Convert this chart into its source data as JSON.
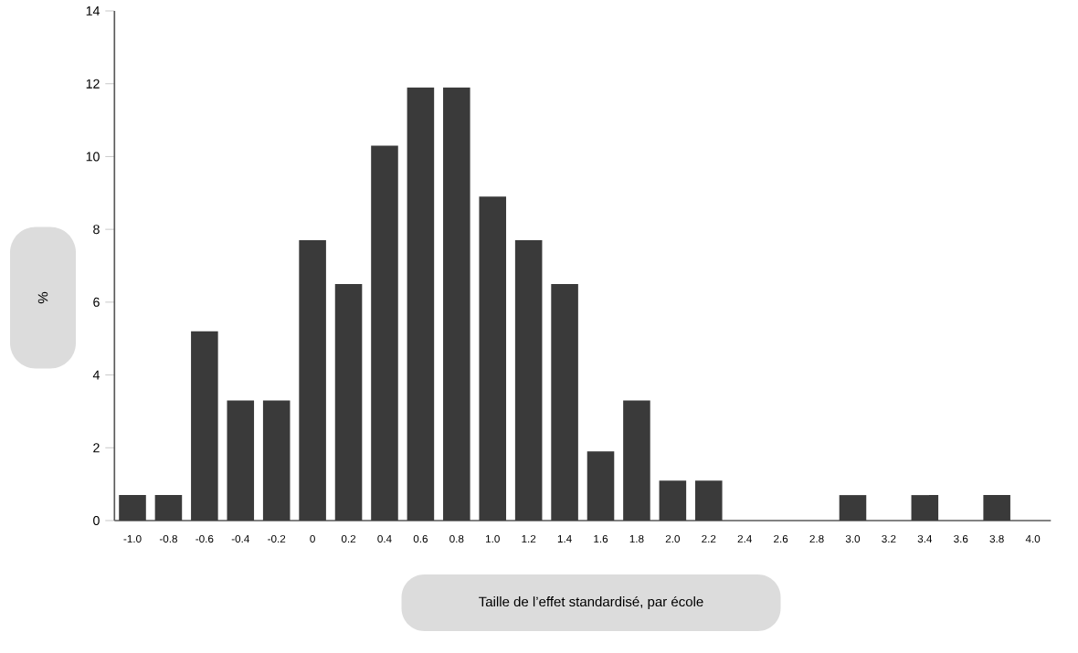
{
  "chart_data": {
    "type": "bar",
    "xlabel": "Taille de l’effet standardisé, par école",
    "ylabel": "%",
    "categories": [
      "-1.0",
      "-0.8",
      "-0.6",
      "-0.4",
      "-0.2",
      "0",
      "0.2",
      "0.4",
      "0.6",
      "0.8",
      "1.0",
      "1.2",
      "1.4",
      "1.6",
      "1.8",
      "2.0",
      "2.2",
      "2.4",
      "2.6",
      "2.8",
      "3.0",
      "3.2",
      "3.4",
      "3.6",
      "3.8",
      "4.0"
    ],
    "values": [
      0.7,
      0.7,
      5.2,
      3.3,
      3.3,
      7.7,
      6.5,
      10.3,
      11.9,
      11.9,
      8.9,
      7.7,
      6.5,
      1.9,
      3.3,
      1.1,
      1.1,
      0,
      0,
      0,
      0.7,
      0,
      0.7,
      0,
      0.7,
      0
    ],
    "color": "#3a3a3a",
    "ylim": [
      0,
      14
    ],
    "yticks": [
      0,
      2,
      4,
      6,
      8,
      10,
      12,
      14
    ]
  }
}
